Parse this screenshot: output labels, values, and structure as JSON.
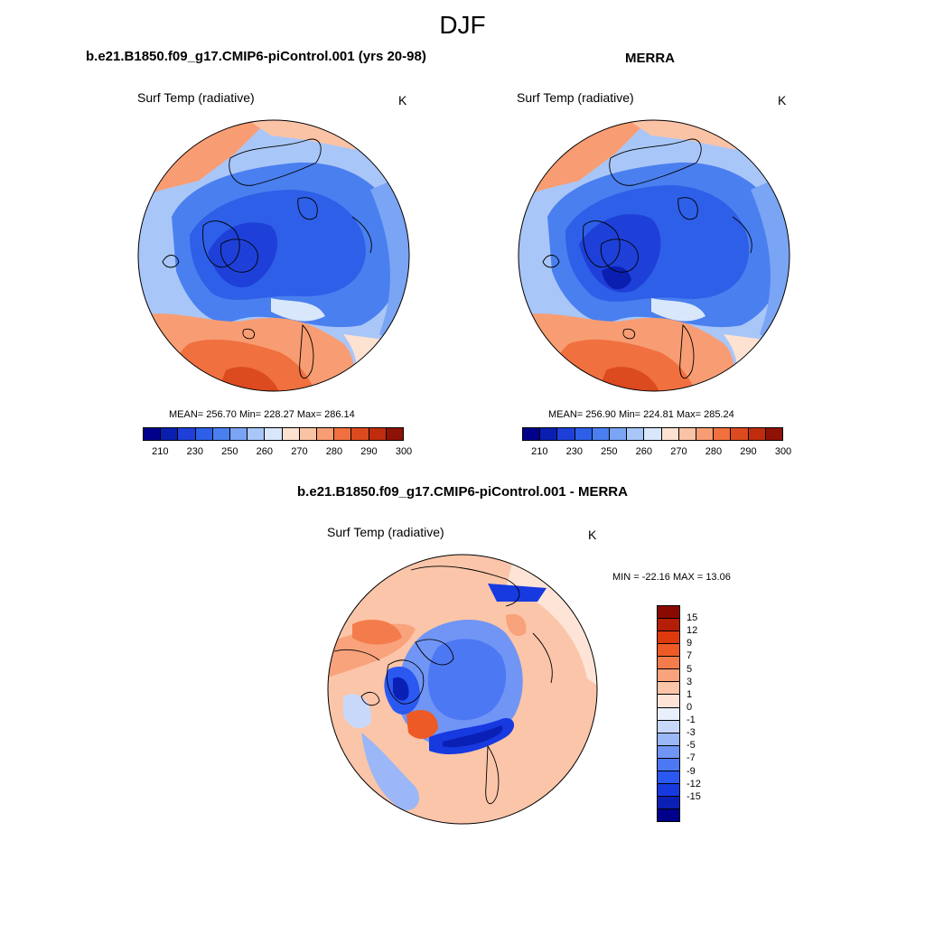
{
  "title": "DJF",
  "colors": {
    "abs_scale": [
      "#00008b",
      "#0a1fb0",
      "#1e40d8",
      "#2e5fe8",
      "#4a7fef",
      "#7aa4f4",
      "#a9c6f8",
      "#d9e7fb",
      "#fde2d2",
      "#fbc3a6",
      "#f89d73",
      "#f0703f",
      "#dc4a1f",
      "#bf2d0e",
      "#8f1206"
    ],
    "diff_scale": [
      "#00008b",
      "#0a20b5",
      "#1639e0",
      "#2b58f0",
      "#4d78f3",
      "#7095f5",
      "#9bb7f7",
      "#c8d8fb",
      "#e8f0fd",
      "#fde4d6",
      "#fbc5a9",
      "#f8a37c",
      "#f47c4c",
      "#ee5a25",
      "#dc3a0c",
      "#b41e05",
      "#8a0a02"
    ]
  },
  "panels": {
    "model": {
      "title": "b.e21.B1850.f09_g17.CMIP6-piControl.001 (yrs 20-98)",
      "variable": "Surf Temp (radiative)",
      "units": "K",
      "stats": "MEAN= 256.70  Min= 228.27  Max= 286.14"
    },
    "obs": {
      "title": "MERRA",
      "variable": "Surf Temp (radiative)",
      "units": "K",
      "stats": "MEAN= 256.90  Min= 224.81  Max= 285.24"
    },
    "diff": {
      "title": "b.e21.B1850.f09_g17.CMIP6-piControl.001 - MERRA",
      "variable": "Surf Temp (radiative)",
      "units": "K",
      "stats": "MIN = -22.16 MAX =  13.06"
    }
  },
  "colorbars": {
    "abs_ticks": [
      "210",
      "230",
      "250",
      "260",
      "270",
      "280",
      "290",
      "300"
    ],
    "diff_ticks": [
      "15",
      "12",
      "9",
      "7",
      "5",
      "3",
      "1",
      "0",
      "-1",
      "-3",
      "-5",
      "-7",
      "-9",
      "-12",
      "-15"
    ]
  }
}
